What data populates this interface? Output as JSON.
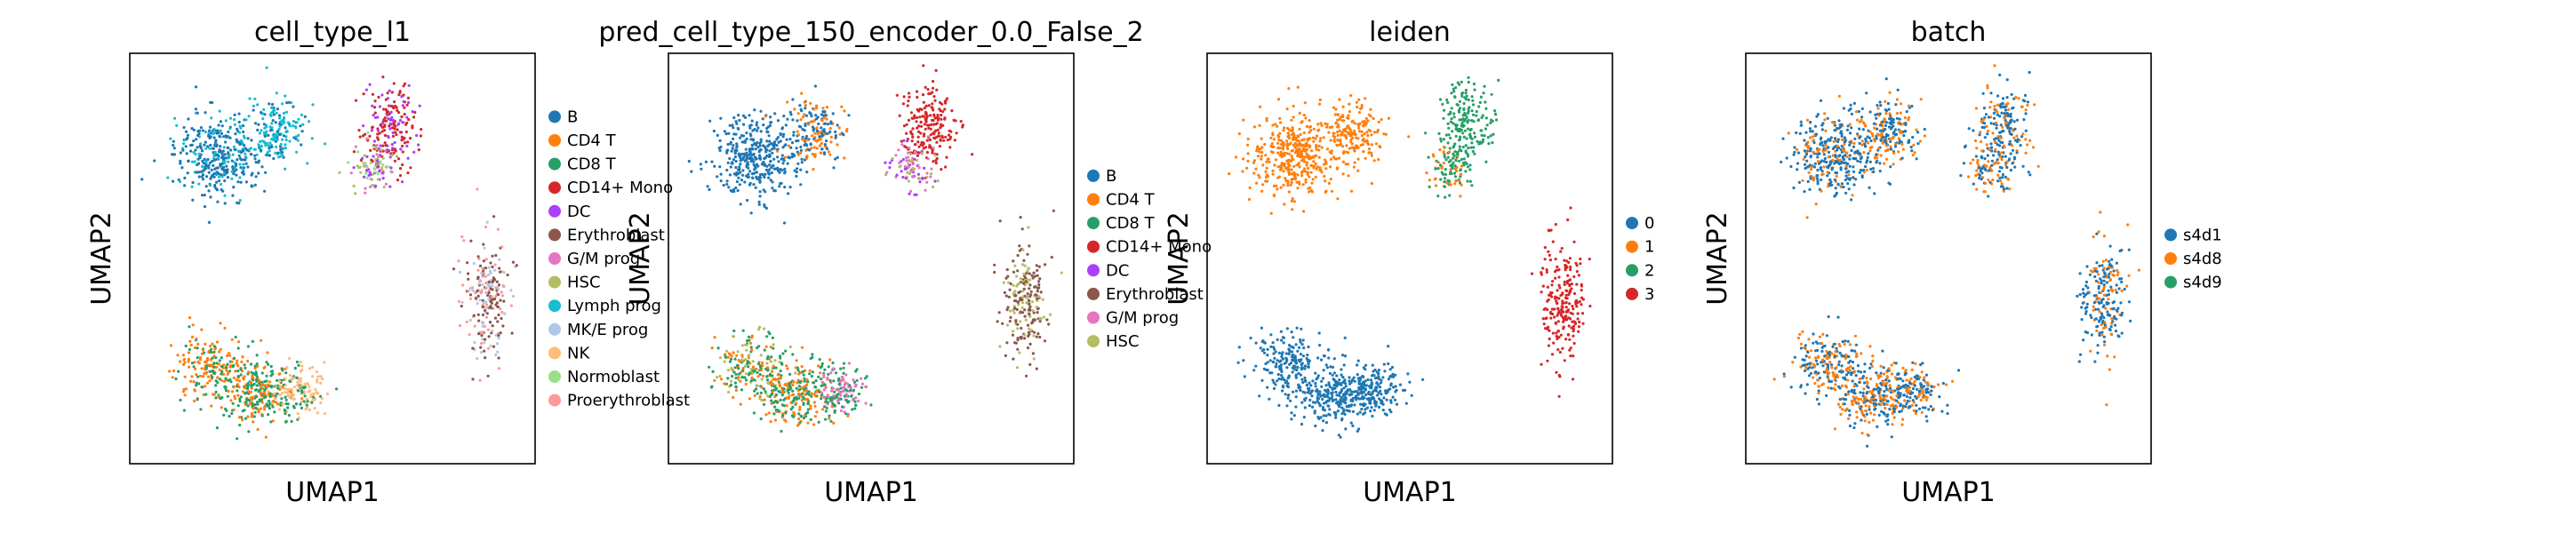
{
  "chart_data": [
    {
      "type": "scatter",
      "title": "cell_type_l1",
      "xlabel": "UMAP1",
      "ylabel": "UMAP2",
      "legend_position": "right",
      "categories": [
        {
          "name": "B",
          "color": "#1f77b4"
        },
        {
          "name": "CD4 T",
          "color": "#ff7f0e"
        },
        {
          "name": "CD8 T",
          "color": "#279e68"
        },
        {
          "name": "CD14+ Mono",
          "color": "#d62728"
        },
        {
          "name": "DC",
          "color": "#aa40fc"
        },
        {
          "name": "Erythroblast",
          "color": "#8c564b"
        },
        {
          "name": "G/M prog",
          "color": "#e377c2"
        },
        {
          "name": "HSC",
          "color": "#b5bd61"
        },
        {
          "name": "Lymph prog",
          "color": "#17becf"
        },
        {
          "name": "MK/E prog",
          "color": "#aec7e8"
        },
        {
          "name": "NK",
          "color": "#ffbb78"
        },
        {
          "name": "Normoblast",
          "color": "#98df8a"
        },
        {
          "name": "Proerythroblast",
          "color": "#ff9896"
        }
      ]
    },
    {
      "type": "scatter",
      "title": "pred_cell_type_150_encoder_0.0_False_2",
      "xlabel": "UMAP1",
      "ylabel": "UMAP2",
      "legend_position": "right",
      "categories": [
        {
          "name": "B",
          "color": "#1f77b4"
        },
        {
          "name": "CD4 T",
          "color": "#ff7f0e"
        },
        {
          "name": "CD8 T",
          "color": "#279e68"
        },
        {
          "name": "CD14+ Mono",
          "color": "#d62728"
        },
        {
          "name": "DC",
          "color": "#aa40fc"
        },
        {
          "name": "Erythroblast",
          "color": "#8c564b"
        },
        {
          "name": "G/M prog",
          "color": "#e377c2"
        },
        {
          "name": "HSC",
          "color": "#b5bd61"
        }
      ]
    },
    {
      "type": "scatter",
      "title": "leiden",
      "xlabel": "UMAP1",
      "ylabel": "UMAP2",
      "legend_position": "right",
      "categories": [
        {
          "name": "0",
          "color": "#1f77b4"
        },
        {
          "name": "1",
          "color": "#ff7f0e"
        },
        {
          "name": "2",
          "color": "#279e68"
        },
        {
          "name": "3",
          "color": "#d62728"
        }
      ]
    },
    {
      "type": "scatter",
      "title": "batch",
      "xlabel": "UMAP1",
      "ylabel": "UMAP2",
      "legend_position": "right",
      "categories": [
        {
          "name": "s4d1",
          "color": "#1f77b4"
        },
        {
          "name": "s4d8",
          "color": "#ff7f0e"
        },
        {
          "name": "s4d9",
          "color": "#279e68"
        }
      ]
    }
  ]
}
